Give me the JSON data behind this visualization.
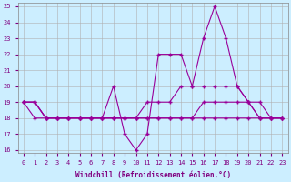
{
  "xlabel": "Windchill (Refroidissement éolien,°C)",
  "x": [
    0,
    1,
    2,
    3,
    4,
    5,
    6,
    7,
    8,
    9,
    10,
    11,
    12,
    13,
    14,
    15,
    16,
    17,
    18,
    19,
    20,
    21,
    22,
    23
  ],
  "line1": [
    19,
    19,
    18,
    18,
    18,
    18,
    18,
    18,
    20,
    17,
    16,
    17,
    22,
    22,
    22,
    20,
    23,
    25,
    23,
    20,
    19,
    18,
    18,
    18
  ],
  "line2": [
    19,
    18,
    18,
    18,
    18,
    18,
    18,
    18,
    18,
    18,
    18,
    18,
    18,
    18,
    18,
    18,
    18,
    18,
    18,
    18,
    18,
    18,
    18,
    18
  ],
  "line3": [
    19,
    19,
    18,
    18,
    18,
    18,
    18,
    18,
    18,
    18,
    18,
    19,
    19,
    19,
    20,
    20,
    20,
    20,
    20,
    20,
    19,
    19,
    18,
    18
  ],
  "line4": [
    19,
    19,
    18,
    18,
    18,
    18,
    18,
    18,
    18,
    18,
    18,
    18,
    18,
    18,
    18,
    18,
    19,
    19,
    19,
    19,
    19,
    18,
    18,
    18
  ],
  "line_color": "#990099",
  "bg_color": "#cceeff",
  "grid_color": "#b0b0b0",
  "ylim": [
    16,
    25
  ],
  "yticks": [
    16,
    17,
    18,
    19,
    20,
    21,
    22,
    23,
    24,
    25
  ],
  "xticks": [
    0,
    1,
    2,
    3,
    4,
    5,
    6,
    7,
    8,
    9,
    10,
    11,
    12,
    13,
    14,
    15,
    16,
    17,
    18,
    19,
    20,
    21,
    22,
    23
  ]
}
